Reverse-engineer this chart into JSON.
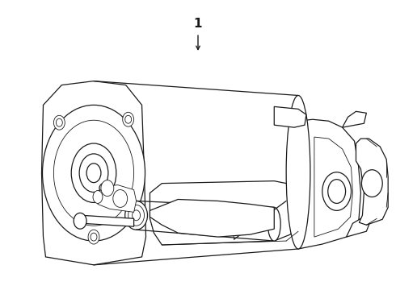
{
  "background_color": "#ffffff",
  "line_color": "#1a1a1a",
  "label_number": "1",
  "figsize": [
    4.9,
    3.6
  ],
  "dpi": 100,
  "lw_main": 0.9,
  "lw_thin": 0.6
}
